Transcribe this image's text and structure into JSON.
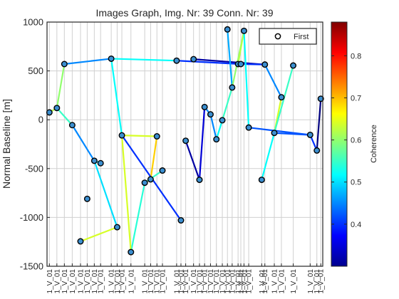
{
  "chart_data": {
    "type": "scatter",
    "title": "Images Graph, Img. Nr: 39 Conn. Nr: 39",
    "xlabel": "",
    "ylabel": "Normal Baseline [m]",
    "ylim": [
      -1500,
      1000
    ],
    "yticks": [
      -1500,
      -1000,
      -500,
      0,
      500,
      1000
    ],
    "grid": true,
    "legend": {
      "entries": [
        "First"
      ],
      "position": "top-right"
    },
    "colorbar": {
      "label": "Coherence",
      "range": [
        0.3,
        0.88
      ],
      "ticks": [
        0.4,
        0.5,
        0.6,
        0.7,
        0.8
      ]
    },
    "x_tick_labels": [
      "1_V_01",
      "1_V_01",
      "1_V_01",
      "1_V_01",
      "1_V_01",
      "1_V_01",
      "1_V_01",
      "1_V_01",
      "1_V_01",
      "1_V_01",
      "1_V_01",
      "1_V_01",
      "1_V_01",
      "1_V_01",
      "1_V_01",
      "1_V_01",
      "1_V_01",
      "1_V_01",
      "1_V_01",
      "1_V_01",
      "1_V_01",
      "1_V_01",
      "1_V_01",
      "1_V_01",
      "1_V_01",
      "1_V_01",
      "1_V_01",
      "1_V_01",
      "1_V_01",
      "1_V_01",
      "1_V_01",
      "1_V_01",
      "1_V_01",
      "1_V_01",
      "1_V_01",
      "1_V_01",
      "1_V_01",
      "1_V_01",
      "1_V_01"
    ],
    "images": [
      {
        "t": 0.6,
        "y": 75
      },
      {
        "t": 2.5,
        "y": 120
      },
      {
        "t": 4.4,
        "y": 570
      },
      {
        "t": 6.4,
        "y": -55
      },
      {
        "t": 8.5,
        "y": -1245
      },
      {
        "t": 10.2,
        "y": -810
      },
      {
        "t": 12.0,
        "y": -420
      },
      {
        "t": 13.6,
        "y": -445
      },
      {
        "t": 16.3,
        "y": 625
      },
      {
        "t": 17.8,
        "y": -1100
      },
      {
        "t": 19.0,
        "y": -160
      },
      {
        "t": 21.3,
        "y": -1355
      },
      {
        "t": 24.8,
        "y": -645
      },
      {
        "t": 26.3,
        "y": -610
      },
      {
        "t": 27.9,
        "y": -170
      },
      {
        "t": 29.3,
        "y": -520
      },
      {
        "t": 32.9,
        "y": 605
      },
      {
        "t": 34.0,
        "y": -1030
      },
      {
        "t": 35.2,
        "y": -215
      },
      {
        "t": 37.2,
        "y": 620
      },
      {
        "t": 38.7,
        "y": -615
      },
      {
        "t": 40.0,
        "y": 130
      },
      {
        "t": 41.5,
        "y": 55
      },
      {
        "t": 43.0,
        "y": -200
      },
      {
        "t": 44.5,
        "y": -5
      },
      {
        "t": 45.8,
        "y": 925
      },
      {
        "t": 47.0,
        "y": 330
      },
      {
        "t": 48.5,
        "y": 570
      },
      {
        "t": 49.2,
        "y": 570
      },
      {
        "t": 50.0,
        "y": 910
      },
      {
        "t": 51.2,
        "y": -80
      },
      {
        "t": 54.5,
        "y": -615
      },
      {
        "t": 55.3,
        "y": 565
      },
      {
        "t": 57.7,
        "y": -135
      },
      {
        "t": 59.5,
        "y": 230
      },
      {
        "t": 62.5,
        "y": 555
      },
      {
        "t": 66.8,
        "y": -155
      },
      {
        "t": 68.5,
        "y": -315
      },
      {
        "t": 69.5,
        "y": 215
      }
    ],
    "connections": [
      {
        "from": 0,
        "to": 1,
        "coherence": 0.62
      },
      {
        "from": 1,
        "to": 2,
        "coherence": 0.6
      },
      {
        "from": 1,
        "to": 3,
        "coherence": 0.55
      },
      {
        "from": 3,
        "to": 6,
        "coherence": 0.45
      },
      {
        "from": 6,
        "to": 7,
        "coherence": 0.52
      },
      {
        "from": 6,
        "to": 9,
        "coherence": 0.5
      },
      {
        "from": 9,
        "to": 4,
        "coherence": 0.64
      },
      {
        "from": 2,
        "to": 8,
        "coherence": 0.45
      },
      {
        "from": 8,
        "to": 10,
        "coherence": 0.52
      },
      {
        "from": 8,
        "to": 16,
        "coherence": 0.52
      },
      {
        "from": 10,
        "to": 14,
        "coherence": 0.64
      },
      {
        "from": 14,
        "to": 13,
        "coherence": 0.69
      },
      {
        "from": 13,
        "to": 12,
        "coherence": 0.72
      },
      {
        "from": 12,
        "to": 15,
        "coherence": 0.55
      },
      {
        "from": 12,
        "to": 11,
        "coherence": 0.54
      },
      {
        "from": 11,
        "to": 10,
        "coherence": 0.64
      },
      {
        "from": 10,
        "to": 17,
        "coherence": 0.4
      },
      {
        "from": 16,
        "to": 28,
        "coherence": 0.4
      },
      {
        "from": 19,
        "to": 32,
        "coherence": 0.32
      },
      {
        "from": 18,
        "to": 20,
        "coherence": 0.32
      },
      {
        "from": 20,
        "to": 21,
        "coherence": 0.35
      },
      {
        "from": 21,
        "to": 22,
        "coherence": 0.45
      },
      {
        "from": 22,
        "to": 23,
        "coherence": 0.45
      },
      {
        "from": 23,
        "to": 24,
        "coherence": 0.52
      },
      {
        "from": 24,
        "to": 26,
        "coherence": 0.55
      },
      {
        "from": 26,
        "to": 25,
        "coherence": 0.47
      },
      {
        "from": 26,
        "to": 29,
        "coherence": 0.6
      },
      {
        "from": 29,
        "to": 27,
        "coherence": 0.62
      },
      {
        "from": 27,
        "to": 28,
        "coherence": 0.4
      },
      {
        "from": 28,
        "to": 32,
        "coherence": 0.4
      },
      {
        "from": 32,
        "to": 34,
        "coherence": 0.45
      },
      {
        "from": 34,
        "to": 33,
        "coherence": 0.64
      },
      {
        "from": 33,
        "to": 31,
        "coherence": 0.52
      },
      {
        "from": 33,
        "to": 35,
        "coherence": 0.55
      },
      {
        "from": 30,
        "to": 36,
        "coherence": 0.42
      },
      {
        "from": 36,
        "to": 37,
        "coherence": 0.4
      },
      {
        "from": 37,
        "to": 38,
        "coherence": 0.3
      },
      {
        "from": 33,
        "to": 36,
        "coherence": 0.42
      },
      {
        "from": 29,
        "to": 30,
        "coherence": 0.52
      }
    ]
  }
}
